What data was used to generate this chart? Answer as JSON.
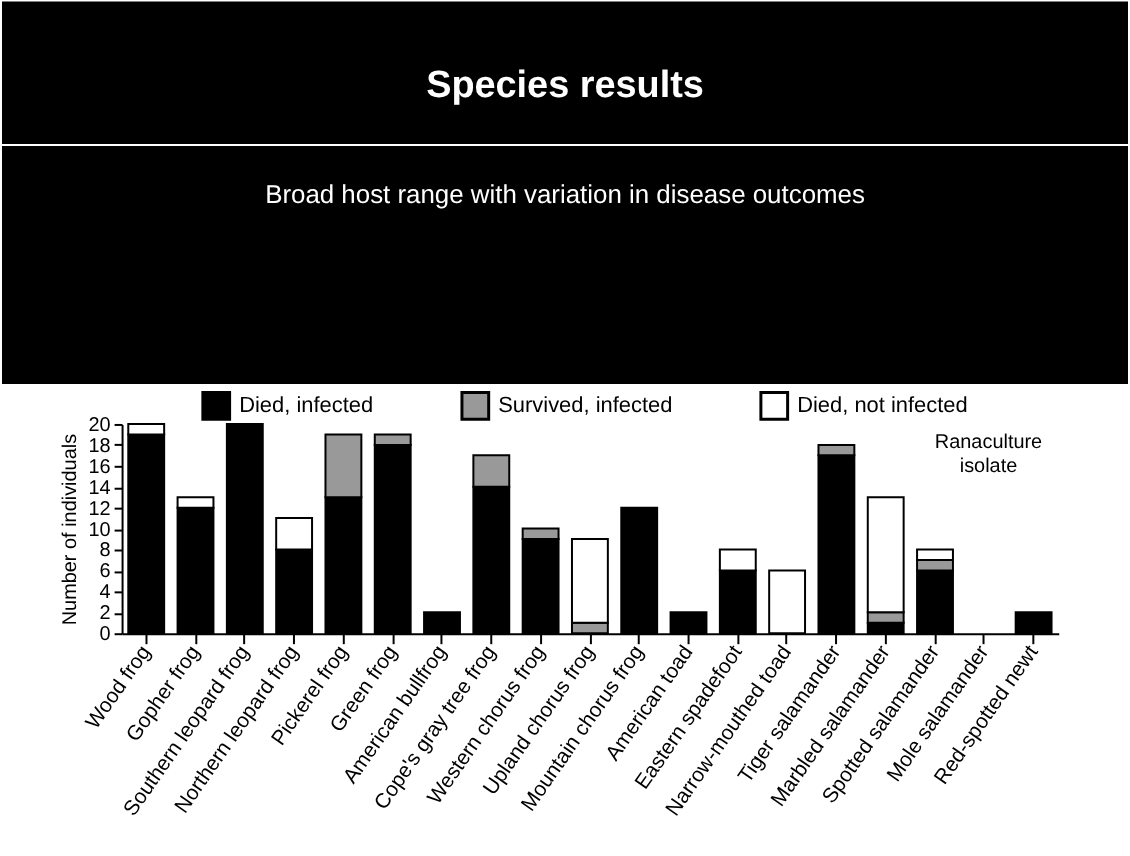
{
  "chart_data": {
    "type": "bar",
    "title": "Species results",
    "subtitle": "Broad host range with variation in disease outcomes",
    "ylabel": "Number of individuals",
    "categories": [
      "Wood frog",
      "Gopher frog",
      "Southern leopard frog",
      "Northern leopard frog",
      "Pickerel frog",
      "Green frog",
      "American bullfrog",
      "Cope's gray tree frog",
      "Western chorus frog",
      "Upland chorus frog",
      "Mountain chorus frog",
      "American toad",
      "Eastern spadefoot",
      "Narrow-mouthed toad",
      "Tiger salamander",
      "Marbled salamander",
      "Spotted salamander",
      "Mole salamander",
      "Red-spotted newt"
    ],
    "series": [
      {
        "name": "Died, infected",
        "color": "#000000",
        "values": [
          19,
          12,
          20,
          8,
          13,
          18,
          2,
          14,
          9,
          0,
          12,
          2,
          6,
          0,
          17,
          1,
          6,
          0,
          2
        ]
      },
      {
        "name": "Survived, infected",
        "color": "#999999",
        "values": [
          0,
          0,
          0,
          0,
          6,
          1,
          0,
          3,
          1,
          1,
          0,
          0,
          0,
          0,
          1,
          1,
          1,
          0,
          0
        ]
      },
      {
        "name": "Died, not infected",
        "color": "#ffffff",
        "values": [
          1,
          1,
          0,
          3,
          0,
          0,
          0,
          0,
          0,
          8,
          0,
          0,
          2,
          6,
          0,
          11,
          1,
          0,
          0
        ]
      }
    ],
    "stacked": true,
    "ylim": [
      0,
      20
    ],
    "yticks": [
      0,
      2,
      4,
      6,
      8,
      10,
      12,
      14,
      16,
      18,
      20
    ],
    "grid": false,
    "legend": "top",
    "annotations": [
      "Ranaculture isolate"
    ]
  }
}
